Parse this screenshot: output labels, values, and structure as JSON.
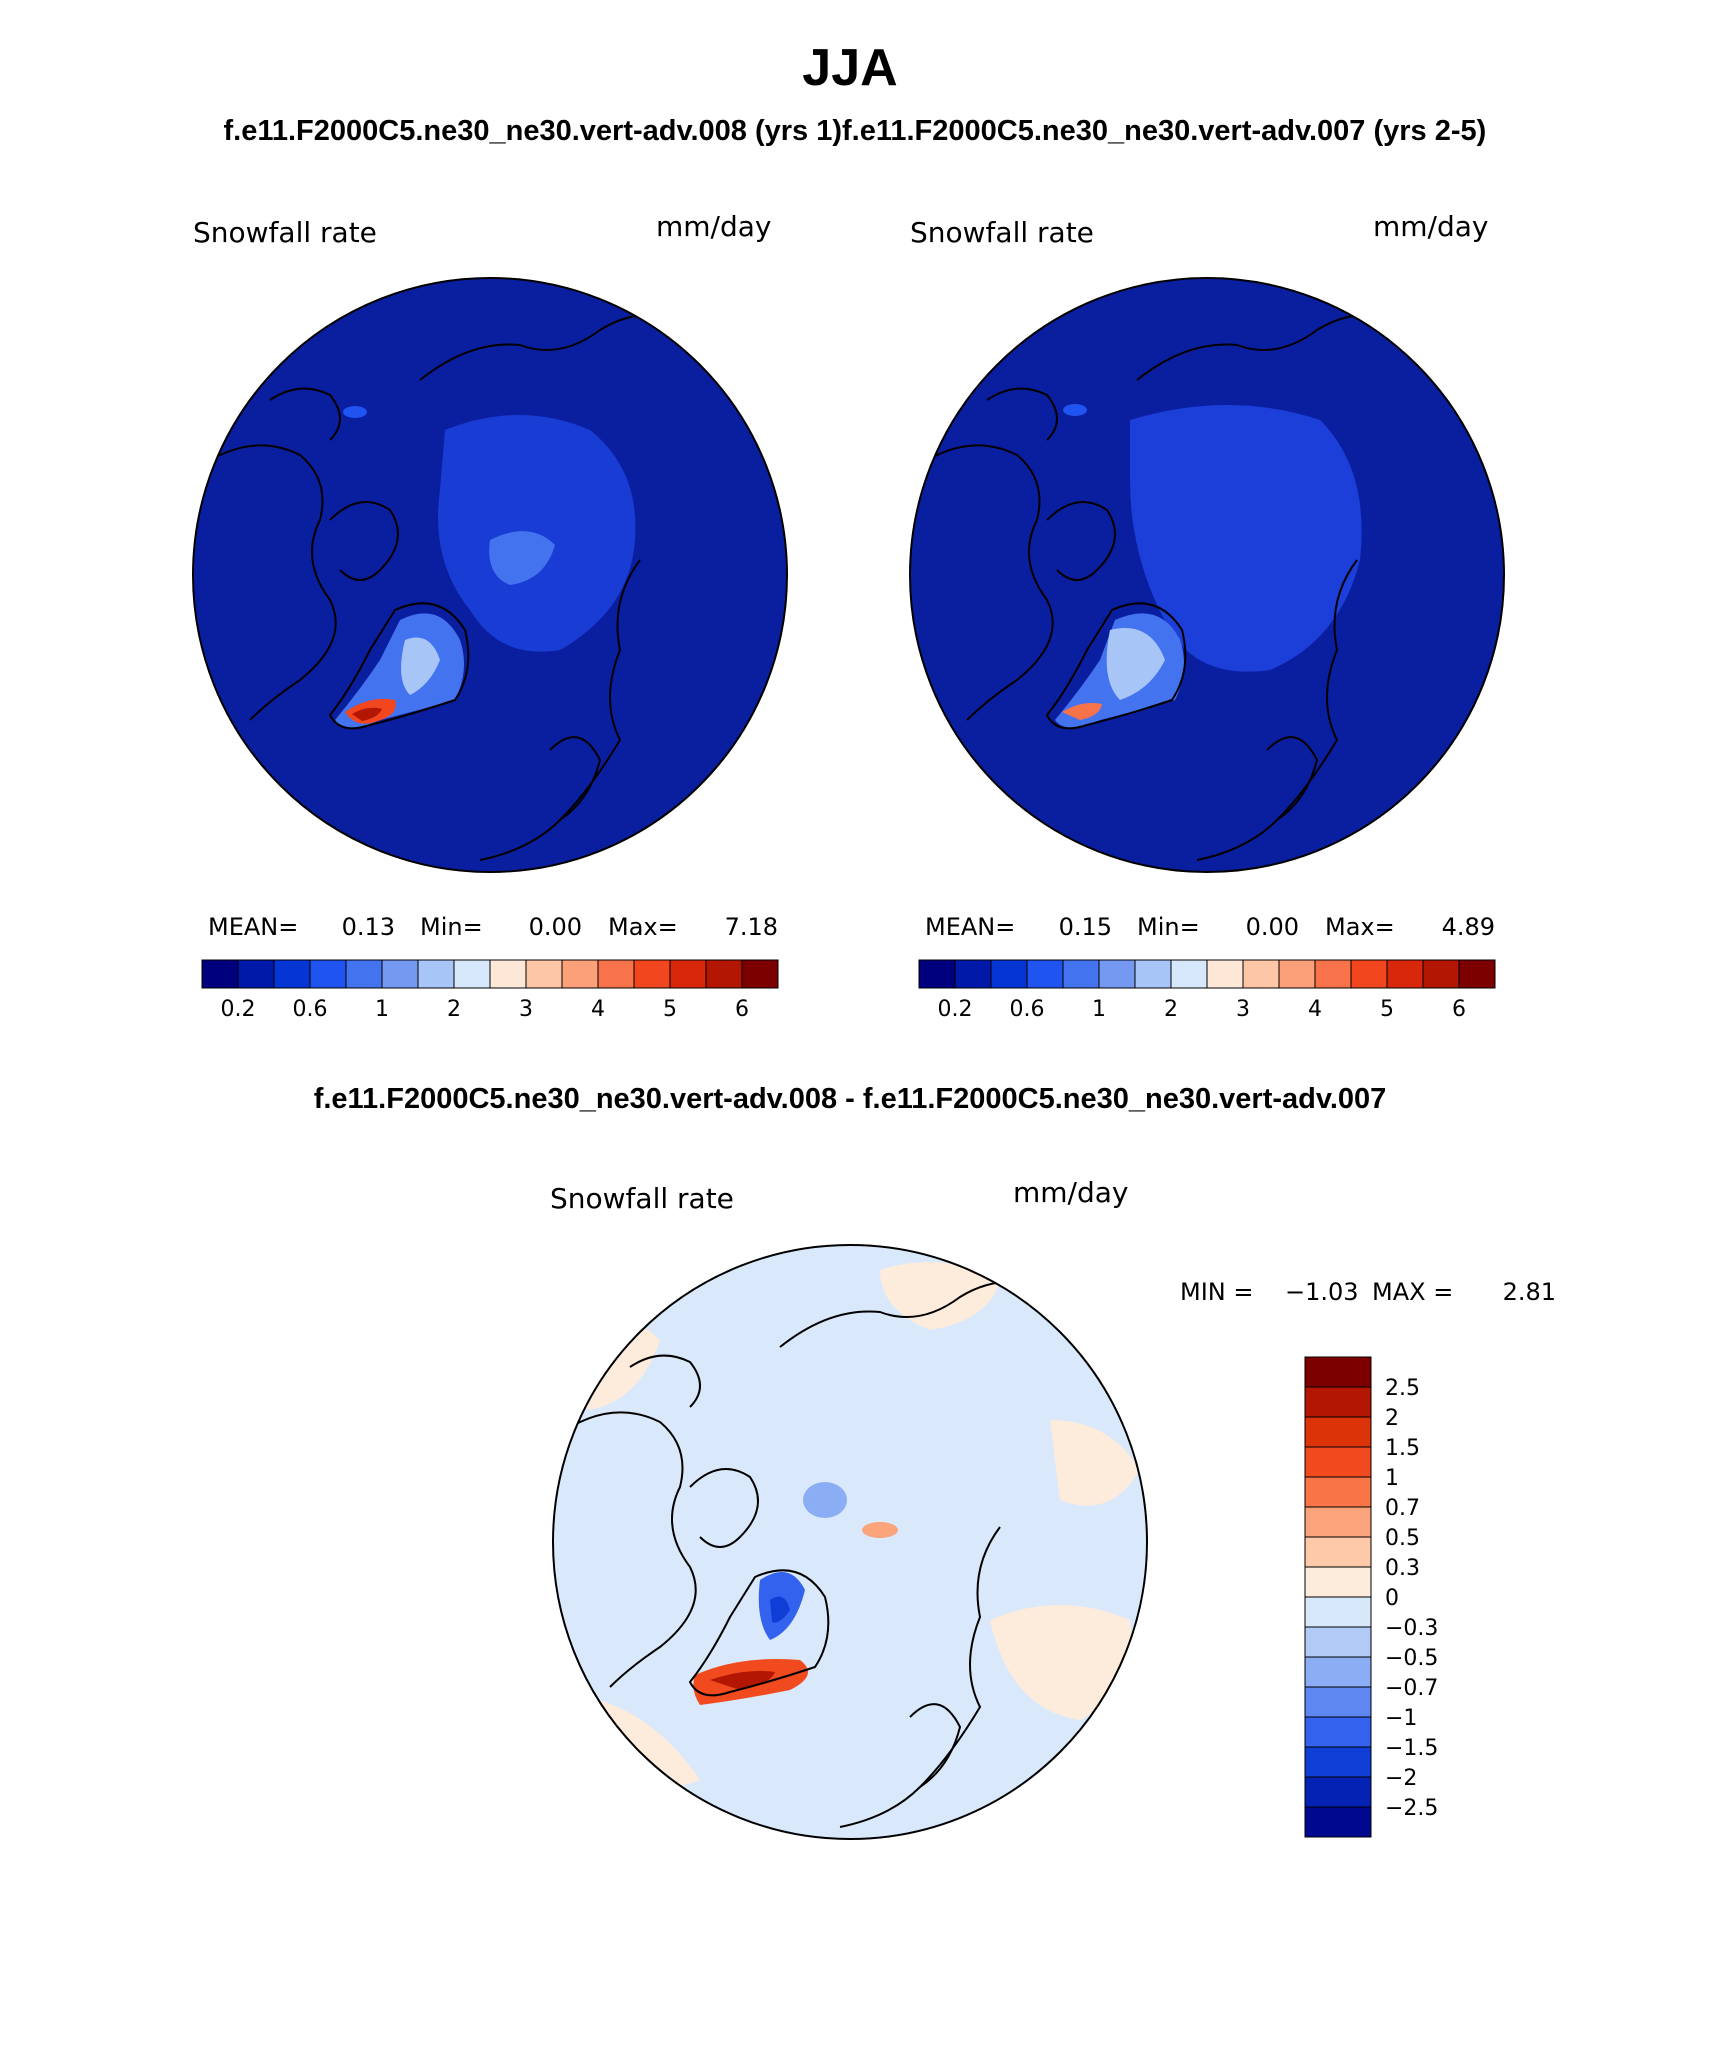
{
  "figure": {
    "title": "JJA",
    "top_caption_left": "f.e11.F2000C5.ne30_ne30.vert-adv.008 (yrs 1)",
    "top_caption_right": "f.e11.F2000C5.ne30_ne30.vert-adv.007 (yrs 2-5)",
    "diff_caption": "f.e11.F2000C5.ne30_ne30.vert-adv.008 - f.e11.F2000C5.ne30_ne30.vert-adv.007"
  },
  "colors": {
    "ocean_field": "#0a1fa0",
    "diff_background": "#d9e9fb",
    "coast": "#000000"
  },
  "chart_data": [
    {
      "type": "heatmap",
      "projection": "north polar stereographic",
      "variable_label": "Snowfall rate",
      "units": "mm/day",
      "stats": {
        "mean_label": "MEAN=",
        "mean": "0.13",
        "min_label": "Min=",
        "min": "0.00",
        "max_label": "Max=",
        "max": "7.18"
      },
      "colorbar": {
        "levels": [
          0.2,
          0.4,
          0.6,
          0.8,
          1,
          1.5,
          2,
          2.5,
          3,
          3.5,
          4,
          4.5,
          5,
          5.5,
          6,
          6.5
        ],
        "tick_labels": [
          "0.2",
          "0.6",
          "1",
          "2",
          "3",
          "4",
          "5",
          "6"
        ],
        "colors": [
          "#00007e",
          "#0019a9",
          "#0535d2",
          "#1f54f0",
          "#4473f0",
          "#7599f0",
          "#a8c5f7",
          "#d7e8fc",
          "#fde8d8",
          "#fdc6a6",
          "#fba078",
          "#f9734a",
          "#f2461f",
          "#d8270a",
          "#b31603",
          "#7c0000"
        ]
      }
    },
    {
      "type": "heatmap",
      "projection": "north polar stereographic",
      "variable_label": "Snowfall rate",
      "units": "mm/day",
      "stats": {
        "mean_label": "MEAN=",
        "mean": "0.15",
        "min_label": "Min=",
        "min": "0.00",
        "max_label": "Max=",
        "max": "4.89"
      },
      "colorbar": {
        "levels": [
          0.2,
          0.4,
          0.6,
          0.8,
          1,
          1.5,
          2,
          2.5,
          3,
          3.5,
          4,
          4.5,
          5,
          5.5,
          6,
          6.5
        ],
        "tick_labels": [
          "0.2",
          "0.6",
          "1",
          "2",
          "3",
          "4",
          "5",
          "6"
        ],
        "colors": [
          "#00007e",
          "#0019a9",
          "#0535d2",
          "#1f54f0",
          "#4473f0",
          "#7599f0",
          "#a8c5f7",
          "#d7e8fc",
          "#fde8d8",
          "#fdc6a6",
          "#fba078",
          "#f9734a",
          "#f2461f",
          "#d8270a",
          "#b31603",
          "#7c0000"
        ]
      }
    },
    {
      "type": "heatmap",
      "projection": "north polar stereographic",
      "variable_label": "Snowfall rate",
      "units": "mm/day",
      "stats": {
        "min_label": "MIN =",
        "min": "−1.03",
        "max_label": "MAX =",
        "max": "2.81"
      },
      "colorbar": {
        "tick_labels": [
          "2.5",
          "2",
          "1.5",
          "1",
          "0.7",
          "0.5",
          "0.3",
          "0",
          "−0.3",
          "−0.5",
          "−0.7",
          "−1",
          "−1.5",
          "−2",
          "−2.5"
        ],
        "colors": [
          "#7c0000",
          "#b31603",
          "#dc3308",
          "#f24a1f",
          "#f97446",
          "#fba37b",
          "#fdc9a9",
          "#fdebdc",
          "#d8e8fb",
          "#b1cbf6",
          "#8aadf3",
          "#5e87f2",
          "#3362ee",
          "#0f3ed6",
          "#0422b3",
          "#00088f"
        ]
      }
    }
  ]
}
